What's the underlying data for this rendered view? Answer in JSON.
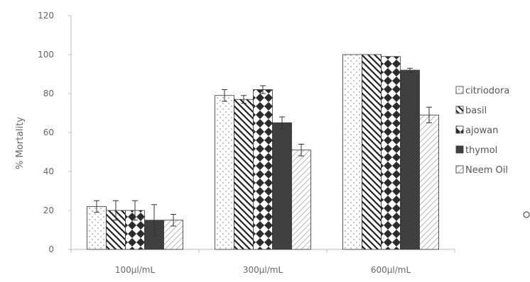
{
  "chart_data": {
    "type": "bar",
    "title": "",
    "xlabel": "",
    "ylabel": "% Mortality",
    "ylim": [
      0,
      120
    ],
    "yticks": [
      0,
      20,
      40,
      60,
      80,
      100,
      120
    ],
    "categories": [
      "100μl/mL",
      "300μl/mL",
      "600μl/mL"
    ],
    "series": [
      {
        "name": "citriodora",
        "values": [
          22,
          79,
          100
        ],
        "errors": [
          3,
          3,
          0
        ],
        "fill": "dots"
      },
      {
        "name": "basil",
        "values": [
          20,
          77,
          100
        ],
        "errors": [
          5,
          2,
          0
        ],
        "fill": "diagonal-stripes"
      },
      {
        "name": "ajowan",
        "values": [
          20,
          82,
          99
        ],
        "errors": [
          5,
          2,
          0
        ],
        "fill": "diamonds"
      },
      {
        "name": "thymol",
        "values": [
          15,
          65,
          92
        ],
        "errors": [
          8,
          3,
          1
        ],
        "fill": "solid-dark"
      },
      {
        "name": "Neem Oil",
        "values": [
          15,
          51,
          69
        ],
        "errors": [
          3,
          3,
          4
        ],
        "fill": "light-hatch"
      }
    ],
    "legend_position": "right",
    "grid": false,
    "colors": {
      "axis": "#bdbdbd",
      "bar_outline": "#333333",
      "dark_fill": "#444444",
      "text": "#666666"
    }
  }
}
